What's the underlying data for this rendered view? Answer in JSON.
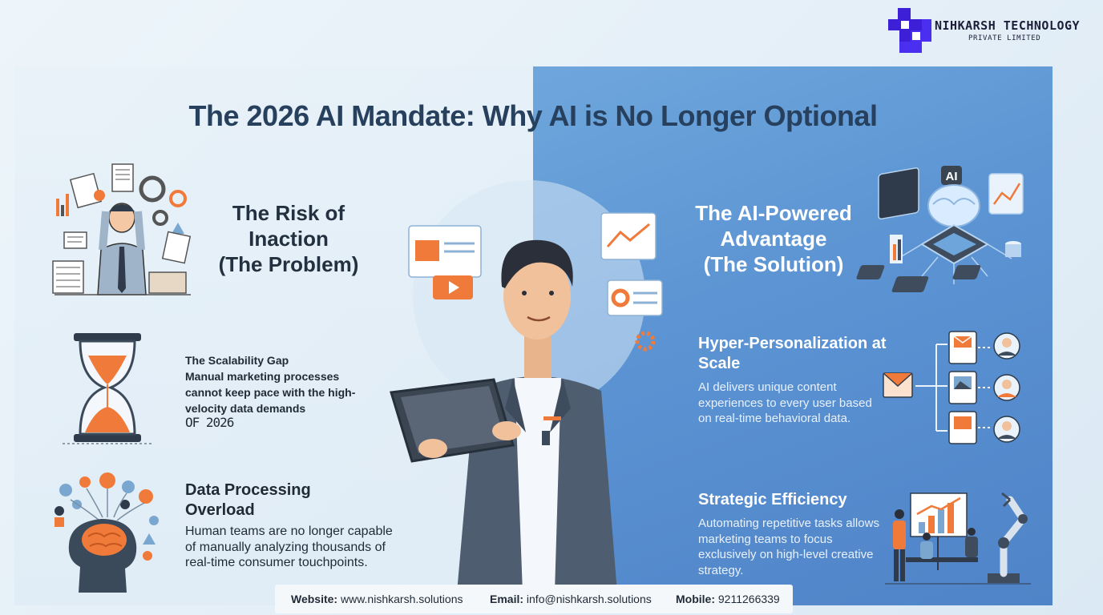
{
  "brand": {
    "name": "NIHKARSH TECHNOLOGY",
    "subtitle": "PRIVATE LIMITED",
    "color": "#3d1fd8"
  },
  "title": "The 2026 AI Mandate: Why AI is No Longer Optional",
  "problem": {
    "heading_line1": "The Risk of",
    "heading_line2": "Inaction",
    "heading_line3": "(The Problem)",
    "scalability": {
      "title": "The Scalability Gap",
      "body": "Manual marketing processes cannot keep pace with the high-velocity data demands",
      "tail": "OF 2026"
    },
    "data_overload": {
      "title": "Data Processing Overload",
      "body": "Human teams are no longer capable of manually analyzing thousands of real-time consumer touchpoints."
    }
  },
  "solution": {
    "heading_line1": "The AI-Powered",
    "heading_line2": "Advantage",
    "heading_line3": "(The Solution)",
    "chip_label": "AI",
    "personalization": {
      "title": "Hyper-Personalization at Scale",
      "body": "AI delivers unique content experiences to every user based on real-time behavioral data."
    },
    "efficiency": {
      "title": "Strategic Efficiency",
      "body": "Automating repetitive tasks allows marketing teams to focus exclusively on high-level creative strategy."
    }
  },
  "footer": {
    "website_label": "Website:",
    "website": "www.nishkarsh.solutions",
    "email_label": "Email:",
    "email": "info@nishkarsh.solutions",
    "mobile_label": "Mobile:",
    "mobile": "9211266339"
  },
  "colors": {
    "accent_orange": "#f07a3a",
    "panel_blue": "#5b93d3",
    "title_navy": "#27405e"
  }
}
